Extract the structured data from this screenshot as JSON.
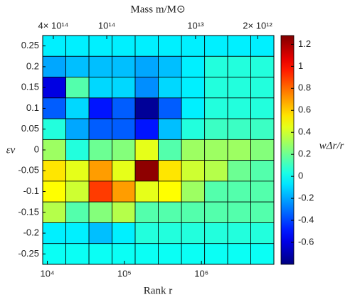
{
  "chart_data": {
    "type": "heatmap",
    "x_label": "Rank r",
    "y_label": "εν",
    "x2_label": "Mass m/M⊙",
    "colorbar_label": "wΔr/r",
    "x_scale": "log",
    "x2_scale": "log",
    "colormap": "jet",
    "x_bins": [
      8700,
      17400,
      34700,
      69200,
      138000,
      275000,
      550000,
      1100000,
      2190000,
      4370000,
      8710000
    ],
    "y": [
      0.25,
      0.2,
      0.15,
      0.1,
      0.05,
      0,
      -0.05,
      -0.1,
      -0.15,
      -0.2,
      -0.25
    ],
    "values": [
      [
        -0.05,
        -0.05,
        -0.05,
        -0.05,
        -0.05,
        -0.05,
        -0.05,
        -0.05,
        -0.05,
        -0.05
      ],
      [
        -0.2,
        -0.15,
        -0.15,
        -0.15,
        -0.2,
        -0.15,
        -0.05,
        0.05,
        0.05,
        0.05
      ],
      [
        -0.6,
        0.15,
        -0.1,
        -0.1,
        -0.25,
        -0.1,
        -0.05,
        0.05,
        0.05,
        0.05
      ],
      [
        -0.35,
        -0.1,
        -0.5,
        -0.35,
        -0.75,
        -0.35,
        -0.05,
        0.05,
        0.05,
        0.05
      ],
      [
        0.05,
        -0.2,
        -0.35,
        -0.35,
        -0.5,
        -0.15,
        0.05,
        0.1,
        0.1,
        0.1
      ],
      [
        0.3,
        0.05,
        0.2,
        0.25,
        0.45,
        0.15,
        0.3,
        0.3,
        0.3,
        0.25
      ],
      [
        0.55,
        0.45,
        0.7,
        0.45,
        1.25,
        0.55,
        0.4,
        0.35,
        0.2,
        0.15
      ],
      [
        0.5,
        0.4,
        0.9,
        0.7,
        0.45,
        0.5,
        0.3,
        0.15,
        0.15,
        0.15
      ],
      [
        0.35,
        0.15,
        0.25,
        0.35,
        0.15,
        0.15,
        0.15,
        0.15,
        0.15,
        0.15
      ],
      [
        -0.05,
        -0.05,
        -0.15,
        -0.05,
        0.05,
        0.05,
        0.05,
        0.05,
        0.05,
        0.05
      ],
      [
        0,
        0,
        0,
        0,
        0,
        0,
        0,
        0,
        0,
        0
      ]
    ],
    "xlim": [
      8700,
      8710000
    ],
    "xticks": [
      {
        "value": 10000,
        "label": "10⁴"
      },
      {
        "value": 100000,
        "label": "10⁵"
      },
      {
        "value": 1000000,
        "label": "10⁶"
      }
    ],
    "x2lim": [
      527000000000000,
      1310000000000
    ],
    "x2ticks": [
      {
        "value": 400000000000000,
        "label": "4× 10¹⁴"
      },
      {
        "value": 100000000000000,
        "label": "10¹⁴"
      },
      {
        "value": 10000000000000,
        "label": "10¹³"
      },
      {
        "value": 2000000000000,
        "label": "2× 10¹²"
      }
    ],
    "ylim": [
      -0.275,
      0.275
    ],
    "yticks": [
      0.25,
      0.2,
      0.15,
      0.1,
      0.05,
      0,
      -0.05,
      -0.1,
      -0.15,
      -0.2,
      -0.25
    ],
    "clim": [
      -0.8,
      1.28
    ],
    "cticks": [
      -0.6,
      -0.4,
      -0.2,
      0,
      0.2,
      0.4,
      0.6,
      0.8,
      1,
      1.2
    ]
  }
}
